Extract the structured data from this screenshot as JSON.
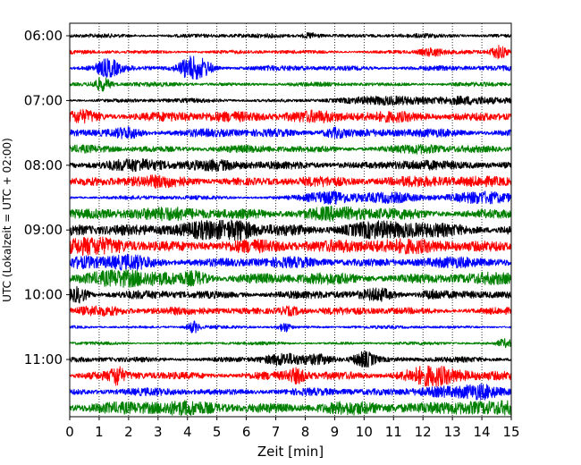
{
  "chart_data": {
    "type": "line",
    "title": "",
    "xlabel": "Zeit  [min]",
    "ylabel": "UTC (Lokalzeit = UTC + 02:00)",
    "xlim": [
      0,
      15
    ],
    "x_ticks": [
      0,
      1,
      2,
      3,
      4,
      5,
      6,
      7,
      8,
      9,
      10,
      11,
      12,
      13,
      14,
      15
    ],
    "x_tick_labels": [
      "0",
      "1",
      "2",
      "3",
      "4",
      "5",
      "6",
      "7",
      "8",
      "9",
      "10",
      "11",
      "12",
      "13",
      "14",
      "15"
    ],
    "y_tick_labels": [
      "06:00",
      "07:00",
      "08:00",
      "09:00",
      "10:00",
      "11:00"
    ],
    "y_tick_rows": [
      0,
      4,
      8,
      12,
      16,
      20
    ],
    "row_start_times": [
      "06:00",
      "06:15",
      "06:30",
      "06:45",
      "07:00",
      "07:15",
      "07:30",
      "07:45",
      "08:00",
      "08:15",
      "08:30",
      "08:45",
      "09:00",
      "09:15",
      "09:30",
      "09:45",
      "10:00",
      "10:15",
      "10:30",
      "10:45",
      "11:00",
      "11:15",
      "11:30",
      "11:45"
    ],
    "trace_colors": [
      "#000000",
      "#ff0000",
      "#0000ff",
      "#008000"
    ],
    "grid": "vertical dotted",
    "traces": [
      {
        "row": 0,
        "color": "#000000",
        "base": 2.0,
        "bursts": [
          [
            8.2,
            0.3,
            3
          ]
        ]
      },
      {
        "row": 1,
        "color": "#ff0000",
        "base": 1.8,
        "bursts": [
          [
            12.3,
            0.4,
            4
          ],
          [
            14.6,
            0.3,
            7
          ]
        ]
      },
      {
        "row": 2,
        "color": "#0000ff",
        "base": 2.5,
        "bursts": [
          [
            1.3,
            0.4,
            8
          ],
          [
            4.1,
            0.4,
            11
          ],
          [
            4.6,
            0.3,
            6
          ]
        ]
      },
      {
        "row": 3,
        "color": "#008000",
        "base": 2.0,
        "bursts": [
          [
            1.1,
            0.3,
            7
          ]
        ]
      },
      {
        "row": 4,
        "color": "#000000",
        "base": 2.0,
        "bursts": [
          [
            11.0,
            1.2,
            4
          ],
          [
            13.5,
            1.0,
            4
          ]
        ]
      },
      {
        "row": 5,
        "color": "#ff0000",
        "base": 5.0,
        "bursts": [
          [
            0.5,
            0.5,
            3
          ],
          [
            8.0,
            1.0,
            3
          ]
        ]
      },
      {
        "row": 6,
        "color": "#0000ff",
        "base": 4.0,
        "bursts": [
          [
            2.0,
            0.4,
            4
          ],
          [
            9.0,
            0.4,
            4
          ]
        ]
      },
      {
        "row": 7,
        "color": "#008000",
        "base": 3.5,
        "bursts": [
          [
            12.0,
            0.6,
            2
          ]
        ]
      },
      {
        "row": 8,
        "color": "#000000",
        "base": 3.5,
        "bursts": [
          [
            2.5,
            1.0,
            4
          ],
          [
            5.0,
            1.0,
            4
          ],
          [
            11.5,
            1.0,
            3
          ]
        ]
      },
      {
        "row": 9,
        "color": "#ff0000",
        "base": 4.5,
        "bursts": [
          [
            3.0,
            1.0,
            2
          ],
          [
            12.0,
            1.0,
            3
          ]
        ]
      },
      {
        "row": 10,
        "color": "#0000ff",
        "base": 2.0,
        "bursts": [
          [
            8.8,
            0.8,
            6
          ],
          [
            11.0,
            1.0,
            5
          ],
          [
            14.0,
            1.0,
            6
          ]
        ]
      },
      {
        "row": 11,
        "color": "#008000",
        "base": 5.0,
        "bursts": [
          [
            2.5,
            1.5,
            3
          ],
          [
            9.0,
            1.5,
            3
          ]
        ]
      },
      {
        "row": 12,
        "color": "#000000",
        "base": 6.5,
        "bursts": [
          [
            4.5,
            1.5,
            3
          ],
          [
            5.8,
            0.4,
            5
          ],
          [
            11.0,
            1.5,
            3
          ]
        ]
      },
      {
        "row": 13,
        "color": "#ff0000",
        "base": 6.0,
        "bursts": [
          [
            1.0,
            1.5,
            3
          ],
          [
            10.0,
            1.5,
            3
          ]
        ]
      },
      {
        "row": 14,
        "color": "#0000ff",
        "base": 5.0,
        "bursts": [
          [
            0.5,
            0.5,
            3
          ],
          [
            2.0,
            0.8,
            3
          ]
        ]
      },
      {
        "row": 15,
        "color": "#008000",
        "base": 5.5,
        "bursts": [
          [
            2.0,
            1.0,
            5
          ],
          [
            4.3,
            0.4,
            5
          ]
        ]
      },
      {
        "row": 16,
        "color": "#000000",
        "base": 4.0,
        "bursts": [
          [
            0.3,
            0.3,
            7
          ],
          [
            10.5,
            0.4,
            4
          ],
          [
            12.3,
            0.4,
            4
          ]
        ]
      },
      {
        "row": 17,
        "color": "#ff0000",
        "base": 3.5,
        "bursts": [
          [
            1.0,
            1.0,
            3
          ],
          [
            7.5,
            0.4,
            4
          ]
        ]
      },
      {
        "row": 18,
        "color": "#0000ff",
        "base": 1.5,
        "bursts": [
          [
            4.2,
            0.2,
            6
          ],
          [
            7.3,
            0.2,
            5
          ]
        ]
      },
      {
        "row": 19,
        "color": "#008000",
        "base": 1.5,
        "bursts": [
          [
            14.8,
            0.3,
            4
          ]
        ]
      },
      {
        "row": 20,
        "color": "#000000",
        "base": 2.5,
        "bursts": [
          [
            7.2,
            0.6,
            5
          ],
          [
            10.0,
            0.4,
            8
          ],
          [
            8.5,
            0.6,
            4
          ]
        ]
      },
      {
        "row": 21,
        "color": "#ff0000",
        "base": 4.0,
        "bursts": [
          [
            1.6,
            0.2,
            8
          ],
          [
            12.3,
            1.0,
            8
          ],
          [
            7.7,
            0.3,
            6
          ]
        ]
      },
      {
        "row": 22,
        "color": "#0000ff",
        "base": 3.5,
        "bursts": [
          [
            12.5,
            1.0,
            4
          ],
          [
            14.0,
            0.6,
            5
          ]
        ]
      },
      {
        "row": 23,
        "color": "#008000",
        "base": 6.0,
        "bursts": [
          [
            2.5,
            1.5,
            2
          ],
          [
            13.5,
            1.0,
            4
          ]
        ]
      }
    ]
  }
}
